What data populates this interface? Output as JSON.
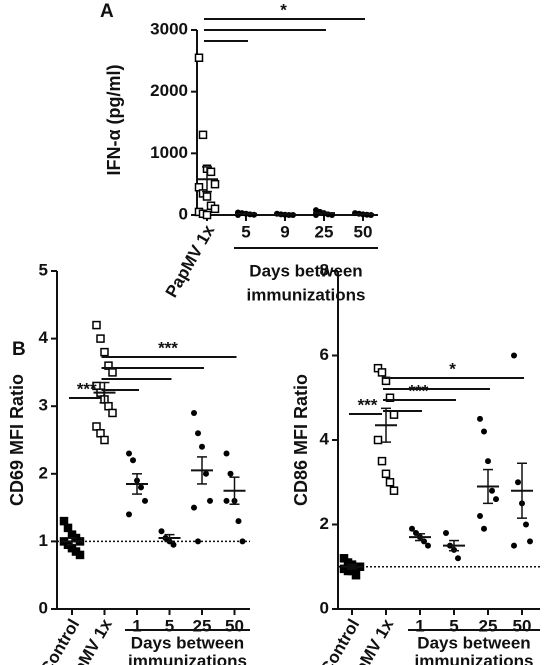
{
  "chart_data": [
    {
      "type": "scatter",
      "panel": "A",
      "y_label": "IFN-α (pg/ml)",
      "categories": [
        "PapMV 1x",
        "5",
        "9",
        "25",
        "50"
      ],
      "markers": [
        "square-open",
        "circle",
        "circle",
        "circle",
        "circle"
      ],
      "color": "#000000",
      "points": [
        [
          2550,
          1300,
          750,
          700,
          500,
          450,
          350,
          300,
          150,
          100,
          50,
          20,
          0
        ],
        [
          40,
          30,
          20,
          10,
          5,
          0
        ],
        [
          20,
          10,
          5,
          0,
          0
        ],
        [
          80,
          50,
          30,
          10,
          0,
          0
        ],
        [
          30,
          20,
          10,
          5,
          0
        ]
      ],
      "means": [
        580,
        20,
        8,
        30,
        13
      ],
      "sem": [
        200,
        6,
        4,
        12,
        5
      ],
      "ylim": [
        0,
        3000
      ],
      "yticks": [
        0,
        1000,
        2000,
        3000
      ],
      "reference_line": 0,
      "group_label": [
        "Days between",
        "immunizations"
      ],
      "group_start": 1,
      "significance": [
        {
          "label": "*",
          "from": 0,
          "to": [
            1,
            3,
            4
          ]
        }
      ]
    },
    {
      "type": "scatter",
      "panel": "B",
      "y_label": "CD69 MFI Ratio",
      "categories": [
        "Control",
        "PapMV 1x",
        "1",
        "5",
        "25",
        "50"
      ],
      "markers": [
        "square-filled",
        "square-open",
        "circle",
        "circle",
        "circle",
        "circle"
      ],
      "color": "#000000",
      "points": [
        [
          1.3,
          1.2,
          1.1,
          1.05,
          1.0,
          1.0,
          0.95,
          0.9,
          0.85,
          0.8
        ],
        [
          4.2,
          4.0,
          3.8,
          3.6,
          3.5,
          3.3,
          3.2,
          3.1,
          3.0,
          2.9,
          2.7,
          2.6,
          2.5
        ],
        [
          2.3,
          2.2,
          1.9,
          1.8,
          1.6,
          1.4
        ],
        [
          1.15,
          1.05,
          1.0,
          0.95
        ],
        [
          2.9,
          2.6,
          2.4,
          2.0,
          1.6,
          1.5,
          1.0
        ],
        [
          2.3,
          2.0,
          1.6,
          1.3,
          1.0,
          1.6
        ]
      ],
      "means": [
        1.0,
        3.2,
        1.85,
        1.05,
        2.05,
        1.75
      ],
      "sem": [
        0.05,
        0.15,
        0.15,
        0.05,
        0.2,
        0.2
      ],
      "ylim": [
        0,
        5
      ],
      "yticks": [
        0,
        1,
        2,
        3,
        4,
        5
      ],
      "reference_line": 1,
      "group_label": [
        "Days between",
        "immunizations"
      ],
      "group_start": 2,
      "significance": [
        {
          "label": "***",
          "from": 0,
          "to": [
            1
          ]
        },
        {
          "label": "***",
          "from": 1,
          "to": [
            2,
            3,
            4,
            5
          ]
        }
      ]
    },
    {
      "type": "scatter",
      "y_label": "CD86 MFI Ratio",
      "categories": [
        "Control",
        "PapMV 1x",
        "1",
        "5",
        "25",
        "50"
      ],
      "markers": [
        "square-filled",
        "square-open",
        "circle",
        "circle",
        "circle",
        "circle"
      ],
      "color": "#000000",
      "points": [
        [
          1.2,
          1.1,
          1.05,
          1.0,
          1.0,
          0.95,
          0.9,
          0.9,
          0.8
        ],
        [
          5.7,
          5.6,
          5.4,
          5.0,
          4.6,
          4.0,
          3.5,
          3.2,
          3.0,
          2.8
        ],
        [
          1.9,
          1.8,
          1.7,
          1.6,
          1.5
        ],
        [
          1.8,
          1.5,
          1.4,
          1.2
        ],
        [
          4.5,
          4.2,
          3.5,
          2.8,
          2.6,
          2.2,
          1.9
        ],
        [
          6.0,
          3.0,
          2.5,
          2.0,
          1.6,
          1.5
        ]
      ],
      "means": [
        1.0,
        4.35,
        1.7,
        1.5,
        2.9,
        2.8
      ],
      "sem": [
        0.05,
        0.4,
        0.08,
        0.12,
        0.4,
        0.65
      ],
      "ylim": [
        0,
        8
      ],
      "yticks": [
        0,
        2,
        4,
        6,
        8
      ],
      "reference_line": 1,
      "group_label": [
        "Days between",
        "immunizations"
      ],
      "group_start": 2,
      "significance": [
        {
          "label": "***",
          "from": 0,
          "to": [
            1
          ]
        },
        {
          "label": "***",
          "from": 1,
          "to": [
            2,
            3
          ]
        },
        {
          "label": "*",
          "from": 1,
          "to": [
            4,
            5
          ]
        }
      ]
    }
  ]
}
